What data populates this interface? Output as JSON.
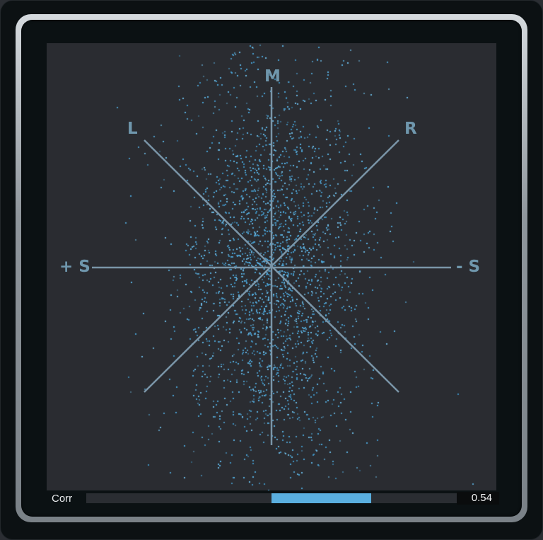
{
  "scope": {
    "labels": {
      "mid": "M",
      "left": "L",
      "right": "R",
      "plus_side": "+ S",
      "minus_side": "- S"
    },
    "dot_color": "#4a9fd0",
    "axis_color": "#7a95a8"
  },
  "correlation": {
    "label": "Corr",
    "value": 0.54,
    "value_text": "0.54",
    "range": [
      -1,
      1
    ],
    "color": "#5aafdf"
  }
}
